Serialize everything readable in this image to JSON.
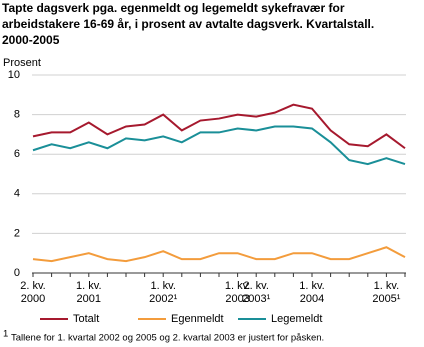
{
  "chart_data": {
    "type": "line",
    "title": [
      "Tapte dagsverk pga. egenmeldt og legemeldt sykefravær for",
      "arbeidstakere 16-69 år, i prosent av avtalte dagsverk. Kvartalstall.",
      "2000-2005"
    ],
    "y_label": "Prosent",
    "categories": [
      "2. kv. 2000",
      null,
      null,
      "1. kv. 2001",
      null,
      null,
      null,
      "1. kv. 2002¹",
      null,
      null,
      null,
      "1. kv. 2003",
      "2. kv. 2003¹",
      null,
      null,
      "1. kv. 2004",
      null,
      null,
      null,
      "1. kv. 2005¹",
      null
    ],
    "series": [
      {
        "name": "Totalt",
        "color": "#a6192e",
        "values": [
          6.9,
          7.1,
          7.1,
          7.6,
          7.0,
          7.4,
          7.5,
          8.0,
          7.2,
          7.7,
          7.8,
          8.0,
          7.9,
          8.1,
          8.5,
          8.3,
          7.2,
          6.5,
          6.4,
          7.0,
          6.3
        ]
      },
      {
        "name": "Egenmeldt",
        "color": "#f39c3c",
        "values": [
          0.7,
          0.6,
          0.8,
          1.0,
          0.7,
          0.6,
          0.8,
          1.1,
          0.7,
          0.7,
          1.0,
          1.0,
          0.7,
          0.7,
          1.0,
          1.0,
          0.7,
          0.7,
          1.0,
          1.3,
          0.8
        ]
      },
      {
        "name": "Legemeldt",
        "color": "#1a8f98",
        "values": [
          6.2,
          6.5,
          6.3,
          6.6,
          6.3,
          6.8,
          6.7,
          6.9,
          6.6,
          7.1,
          7.1,
          7.3,
          7.2,
          7.4,
          7.4,
          7.3,
          6.6,
          5.7,
          5.5,
          5.8,
          5.5
        ]
      }
    ],
    "ylim": [
      0,
      10
    ],
    "yticks": [
      0,
      2,
      4,
      6,
      8,
      10
    ],
    "grid": true,
    "footnote_marker": "1",
    "footnote": "Tallene for 1. kvartal 2002 og 2005 og 2. kvartal 2003 er justert for påsken."
  }
}
